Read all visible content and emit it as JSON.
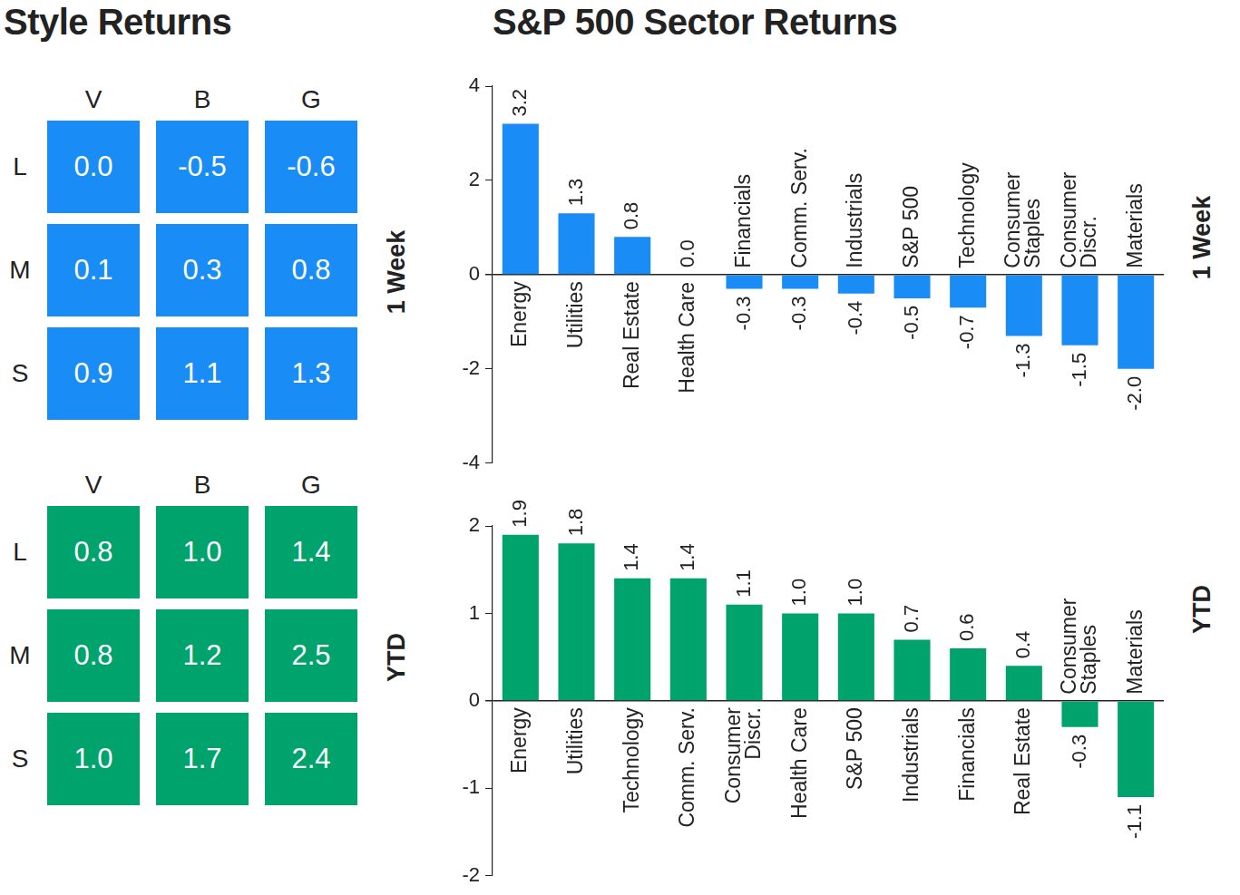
{
  "chart_data": [
    {
      "type": "table",
      "title": "Style Returns",
      "subtitle": "1 Week",
      "columns": [
        "V",
        "B",
        "G"
      ],
      "rows": [
        "L",
        "M",
        "S"
      ],
      "cells": [
        [
          0.0,
          -0.5,
          -0.6
        ],
        [
          0.1,
          0.3,
          0.8
        ],
        [
          0.9,
          1.1,
          1.3
        ]
      ],
      "cell_labels": [
        [
          "0.0",
          "-0.5",
          "-0.6"
        ],
        [
          "0.1",
          "0.3",
          "0.8"
        ],
        [
          "0.9",
          "1.1",
          "1.3"
        ]
      ],
      "color": "#1a8cf5"
    },
    {
      "type": "table",
      "subtitle": "YTD",
      "columns": [
        "V",
        "B",
        "G"
      ],
      "rows": [
        "L",
        "M",
        "S"
      ],
      "cells": [
        [
          0.8,
          1.0,
          1.4
        ],
        [
          0.8,
          1.2,
          2.5
        ],
        [
          1.0,
          1.7,
          2.4
        ]
      ],
      "cell_labels": [
        [
          "0.8",
          "1.0",
          "1.4"
        ],
        [
          "0.8",
          "1.2",
          "2.5"
        ],
        [
          "1.0",
          "1.7",
          "2.4"
        ]
      ],
      "color": "#00a36c"
    },
    {
      "type": "bar",
      "title": "S&P 500 Sector Returns",
      "subtitle": "1 Week",
      "categories": [
        "Energy",
        "Utilities",
        "Real Estate",
        "Health Care",
        "Financials",
        "Comm. Serv.",
        "Industrials",
        "S&P 500",
        "Technology",
        "Consumer Staples",
        "Consumer Discr.",
        "Materials"
      ],
      "values": [
        3.2,
        1.3,
        0.8,
        0.0,
        -0.3,
        -0.3,
        -0.4,
        -0.5,
        -0.7,
        -1.3,
        -1.5,
        -2.0
      ],
      "value_labels": [
        "3.2",
        "1.3",
        "0.8",
        "0.0",
        "-0.3",
        "-0.3",
        "-0.4",
        "-0.5",
        "-0.7",
        "-1.3",
        "-1.5",
        "-2.0"
      ],
      "color": "#1a8cf5",
      "ylim": [
        -4,
        4
      ],
      "yticks": [
        -4,
        -2,
        0,
        2,
        4
      ],
      "grid": false,
      "data_labels": true
    },
    {
      "type": "bar",
      "subtitle": "YTD",
      "categories": [
        "Energy",
        "Utilities",
        "Technology",
        "Comm. Serv.",
        "Consumer Discr.",
        "Health Care",
        "S&P 500",
        "Industrials",
        "Financials",
        "Real Estate",
        "Consumer Staples",
        "Materials"
      ],
      "values": [
        1.9,
        1.8,
        1.4,
        1.4,
        1.1,
        1.0,
        1.0,
        0.7,
        0.6,
        0.4,
        -0.3,
        -1.1
      ],
      "value_labels": [
        "1.9",
        "1.8",
        "1.4",
        "1.4",
        "1.1",
        "1.0",
        "1.0",
        "0.7",
        "0.6",
        "0.4",
        "-0.3",
        "-1.1"
      ],
      "color": "#00a36c",
      "ylim": [
        -2,
        2
      ],
      "yticks": [
        -2,
        -1,
        0,
        1,
        2
      ],
      "grid": false,
      "data_labels": true
    }
  ]
}
